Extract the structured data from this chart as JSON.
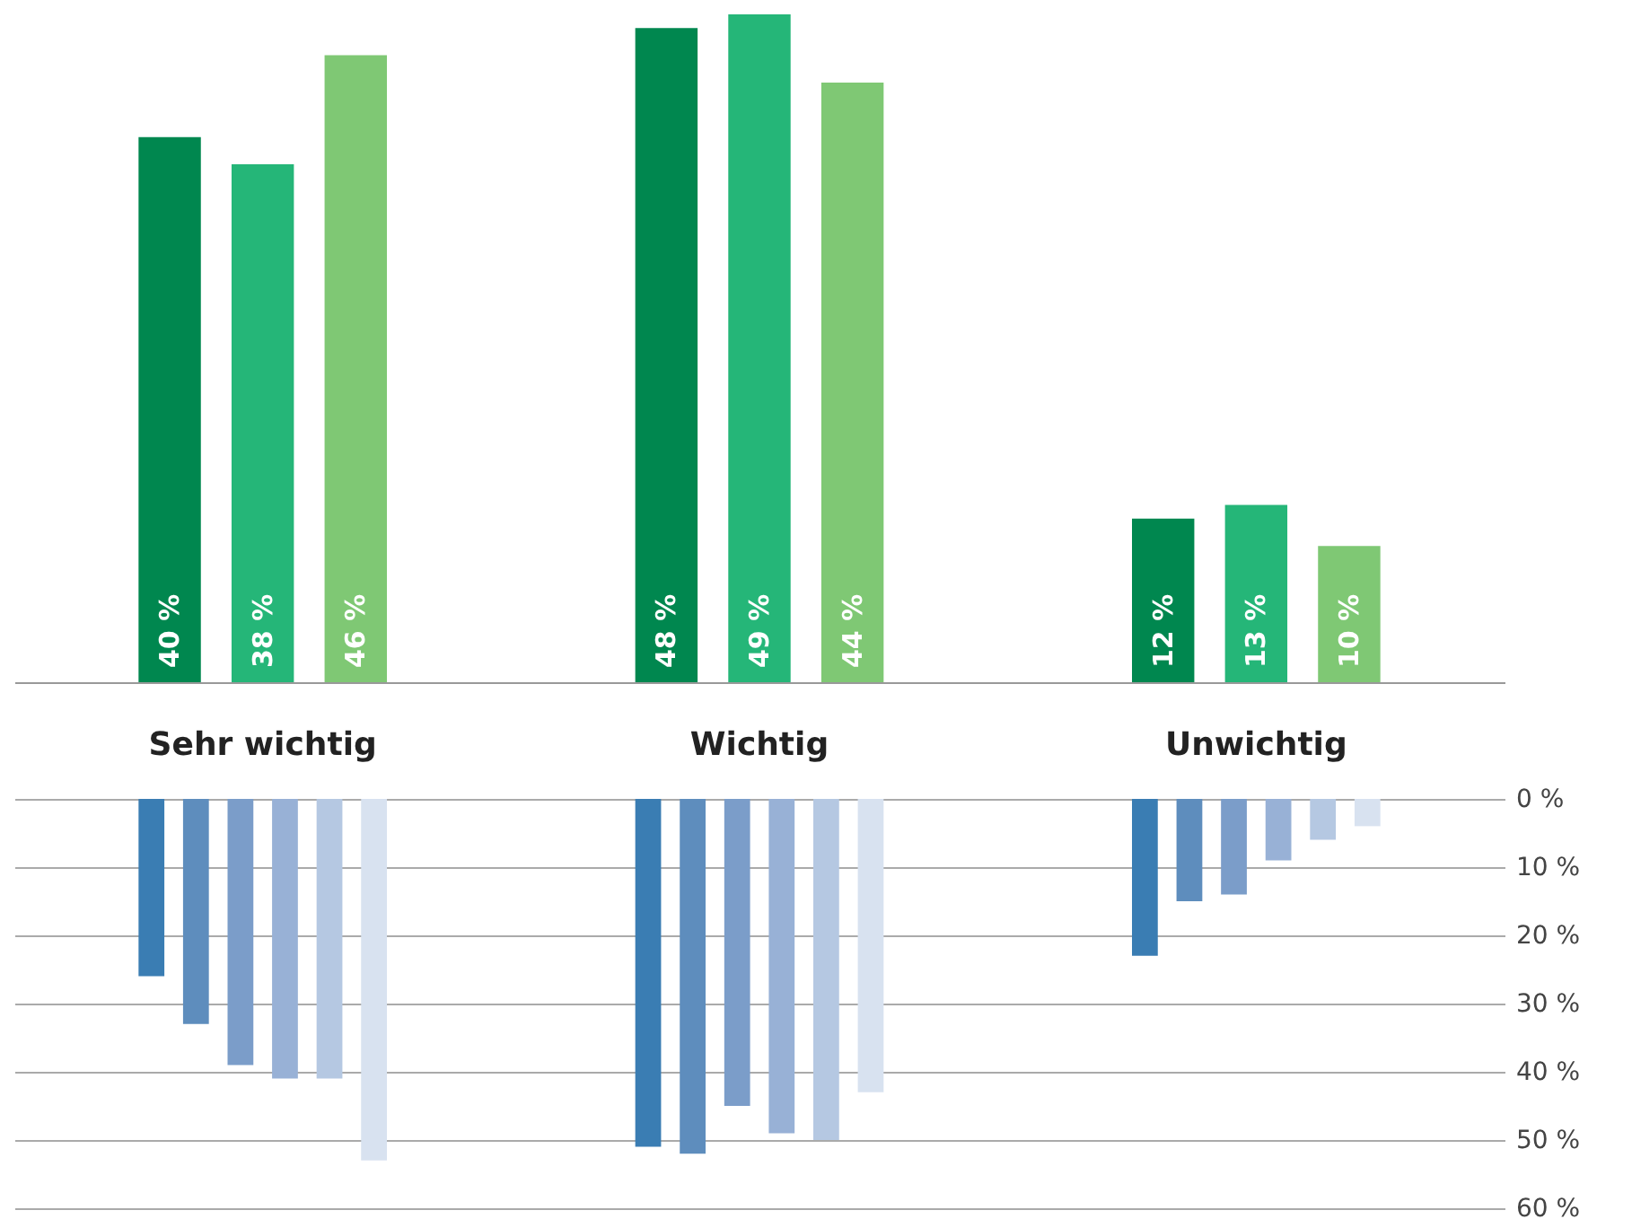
{
  "chart_data": [
    {
      "type": "bar",
      "categories": [
        "Sehr wichtig",
        "Wichtig",
        "Unwichtig"
      ],
      "legend": false,
      "grid": false,
      "series": [
        {
          "color": "#00874f",
          "values": [
            40,
            48,
            12
          ],
          "value_labels": [
            "40 %",
            "48 %",
            "12 %"
          ]
        },
        {
          "color": "#25b678",
          "values": [
            38,
            49,
            13
          ],
          "value_labels": [
            "38 %",
            "49 %",
            "13 %"
          ]
        },
        {
          "color": "#7fc874",
          "values": [
            46,
            44,
            10
          ],
          "value_labels": [
            "46 %",
            "44 %",
            "10 %"
          ]
        }
      ]
    },
    {
      "type": "bar",
      "categories": [
        null,
        null,
        null
      ],
      "legend": false,
      "grid": "y",
      "tick_labels": "y",
      "ylim": [
        60,
        0
      ],
      "yticks": [
        {
          "value": 0,
          "label": "0 %"
        },
        {
          "value": 10,
          "label": "10 %"
        },
        {
          "value": 20,
          "label": "20 %"
        },
        {
          "value": 30,
          "label": "30 %"
        },
        {
          "value": 40,
          "label": "40 %"
        },
        {
          "value": 50,
          "label": "50 %"
        },
        {
          "value": 60,
          "label": "60 %"
        }
      ],
      "series": [
        {
          "color": "#3a7db3",
          "values": [
            26,
            51,
            23
          ]
        },
        {
          "color": "#5e8dbd",
          "values": [
            33,
            52,
            15
          ]
        },
        {
          "color": "#7b9dc9",
          "values": [
            39,
            45,
            14
          ]
        },
        {
          "color": "#98b1d6",
          "values": [
            41,
            49,
            9
          ]
        },
        {
          "color": "#b5c8e2",
          "values": [
            41,
            50,
            6
          ]
        },
        {
          "color": "#d8e2f0",
          "values": [
            53,
            43,
            4
          ]
        }
      ]
    }
  ]
}
